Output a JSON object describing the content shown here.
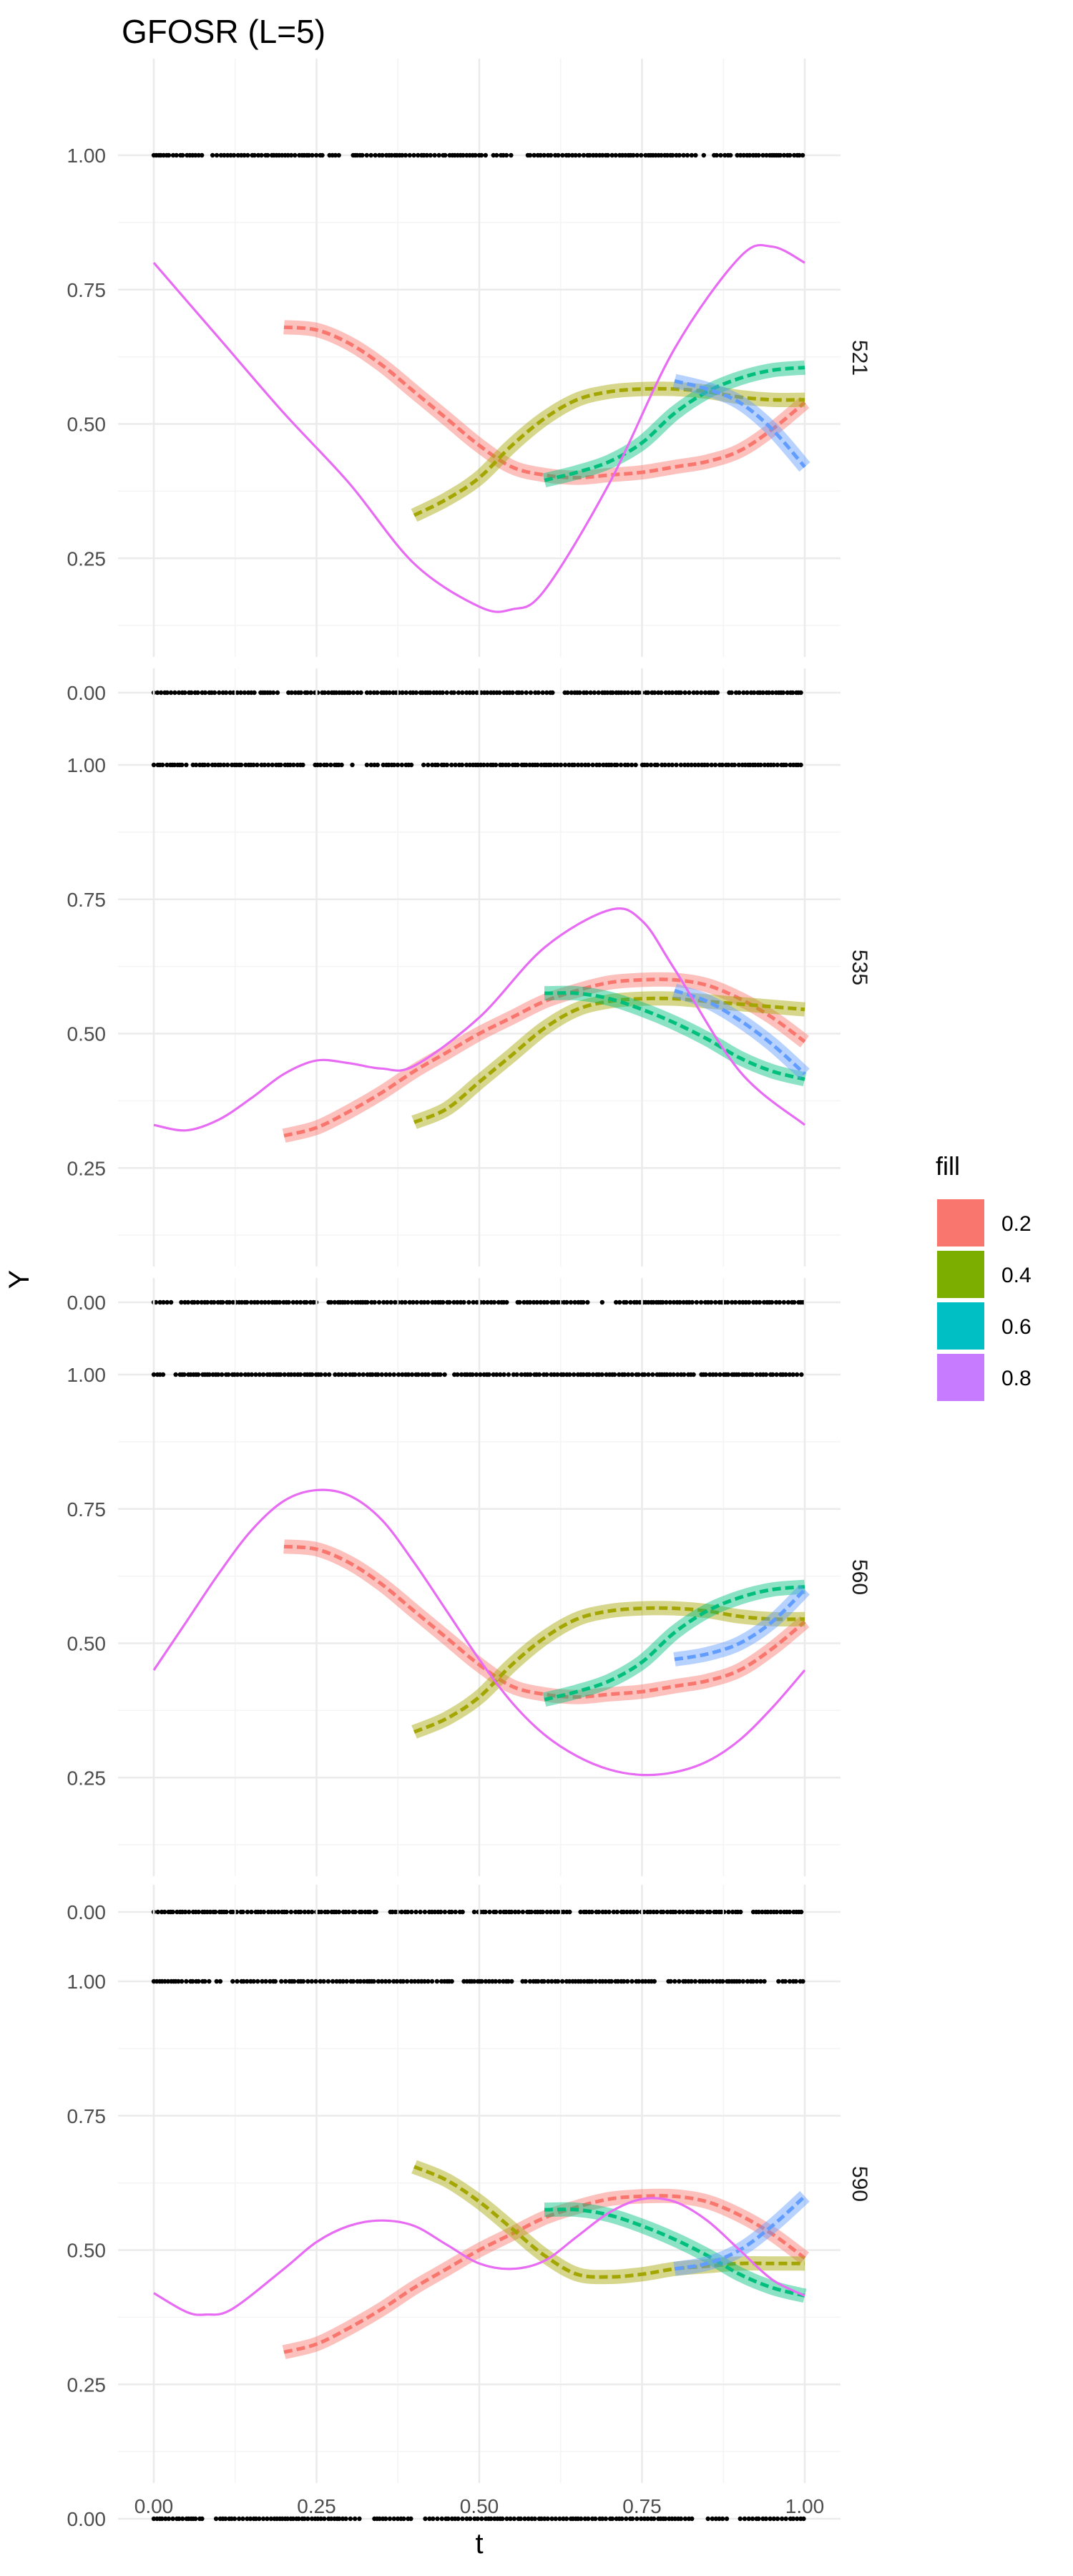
{
  "chart_data": {
    "type": "line",
    "title": "GFOSR (L=5)",
    "xlabel": "t",
    "ylabel": "Y",
    "xlim": [
      0,
      1
    ],
    "ylim": [
      0,
      1
    ],
    "x_ticks": [
      "0.00",
      "0.25",
      "0.50",
      "0.75",
      "1.00"
    ],
    "y_ticks": [
      "0.00",
      "0.25",
      "0.50",
      "0.75",
      "1.00"
    ],
    "grid": true,
    "legend": {
      "title": "fill",
      "position": "right",
      "entries": [
        {
          "label": "0.2",
          "color": "#F8766D"
        },
        {
          "label": "0.4",
          "color": "#7CAE00"
        },
        {
          "label": "0.6",
          "color": "#00BFC4"
        },
        {
          "label": "0.8",
          "color": "#C77CFF"
        }
      ]
    },
    "series_colors": {
      "0.2": "#F8766D",
      "0.4": "#A3A500",
      "0.6": "#00BF7D",
      "0.8": "#619CFF",
      "truth": "#E76BF3",
      "points": "#000000"
    },
    "panels": [
      {
        "strip": "521",
        "truth": {
          "x": [
            0,
            0.1,
            0.2,
            0.3,
            0.4,
            0.5,
            0.55,
            0.6,
            0.7,
            0.8,
            0.9,
            0.95,
            1.0
          ],
          "y": [
            0.8,
            0.66,
            0.52,
            0.39,
            0.24,
            0.16,
            0.155,
            0.19,
            0.39,
            0.64,
            0.81,
            0.83,
            0.8
          ]
        },
        "series": [
          {
            "name": "0.2",
            "x": [
              0.2,
              0.25,
              0.3,
              0.35,
              0.4,
              0.45,
              0.5,
              0.55,
              0.6,
              0.65,
              0.7,
              0.75,
              0.8,
              0.85,
              0.9,
              0.95,
              1.0
            ],
            "y": [
              0.68,
              0.675,
              0.65,
              0.61,
              0.56,
              0.51,
              0.46,
              0.42,
              0.405,
              0.4,
              0.405,
              0.41,
              0.42,
              0.43,
              0.45,
              0.49,
              0.54
            ]
          },
          {
            "name": "0.4",
            "x": [
              0.4,
              0.45,
              0.5,
              0.55,
              0.6,
              0.65,
              0.7,
              0.75,
              0.8,
              0.85,
              0.9,
              0.95,
              1.0
            ],
            "y": [
              0.33,
              0.36,
              0.4,
              0.46,
              0.51,
              0.545,
              0.56,
              0.565,
              0.565,
              0.56,
              0.55,
              0.545,
              0.545
            ]
          },
          {
            "name": "0.6",
            "x": [
              0.6,
              0.65,
              0.7,
              0.75,
              0.8,
              0.85,
              0.9,
              0.95,
              1.0
            ],
            "y": [
              0.395,
              0.41,
              0.43,
              0.465,
              0.52,
              0.56,
              0.585,
              0.6,
              0.605
            ]
          },
          {
            "name": "0.8",
            "x": [
              0.8,
              0.85,
              0.9,
              0.95,
              1.0
            ],
            "y": [
              0.58,
              0.565,
              0.54,
              0.49,
              0.42
            ]
          }
        ]
      },
      {
        "strip": "535",
        "truth": {
          "x": [
            0,
            0.05,
            0.1,
            0.15,
            0.2,
            0.25,
            0.3,
            0.35,
            0.4,
            0.5,
            0.6,
            0.7,
            0.75,
            0.8,
            0.9,
            1.0
          ],
          "y": [
            0.33,
            0.32,
            0.34,
            0.38,
            0.425,
            0.45,
            0.445,
            0.435,
            0.44,
            0.53,
            0.66,
            0.73,
            0.71,
            0.62,
            0.43,
            0.33
          ]
        },
        "series": [
          {
            "name": "0.2",
            "x": [
              0.2,
              0.25,
              0.3,
              0.35,
              0.4,
              0.45,
              0.5,
              0.55,
              0.6,
              0.65,
              0.7,
              0.75,
              0.8,
              0.85,
              0.9,
              0.95,
              1.0
            ],
            "y": [
              0.31,
              0.325,
              0.355,
              0.39,
              0.43,
              0.465,
              0.5,
              0.53,
              0.56,
              0.58,
              0.595,
              0.6,
              0.6,
              0.59,
              0.565,
              0.53,
              0.485
            ]
          },
          {
            "name": "0.4",
            "x": [
              0.4,
              0.45,
              0.5,
              0.55,
              0.6,
              0.65,
              0.7,
              0.75,
              0.8,
              0.85,
              0.9,
              0.95,
              1.0
            ],
            "y": [
              0.335,
              0.36,
              0.41,
              0.46,
              0.51,
              0.545,
              0.56,
              0.565,
              0.565,
              0.56,
              0.555,
              0.55,
              0.545
            ]
          },
          {
            "name": "0.6",
            "x": [
              0.6,
              0.65,
              0.7,
              0.75,
              0.8,
              0.85,
              0.9,
              0.95,
              1.0
            ],
            "y": [
              0.575,
              0.575,
              0.565,
              0.545,
              0.52,
              0.49,
              0.455,
              0.43,
              0.415
            ]
          },
          {
            "name": "0.8",
            "x": [
              0.8,
              0.85,
              0.9,
              0.95,
              1.0
            ],
            "y": [
              0.58,
              0.56,
              0.525,
              0.48,
              0.425
            ]
          }
        ]
      },
      {
        "strip": "560",
        "truth": {
          "x": [
            0,
            0.05,
            0.1,
            0.15,
            0.2,
            0.25,
            0.3,
            0.35,
            0.4,
            0.45,
            0.5,
            0.55,
            0.6,
            0.65,
            0.7,
            0.75,
            0.8,
            0.85,
            0.9,
            0.95,
            1.0
          ],
          "y": [
            0.45,
            0.54,
            0.63,
            0.71,
            0.765,
            0.785,
            0.775,
            0.73,
            0.65,
            0.56,
            0.47,
            0.39,
            0.33,
            0.29,
            0.265,
            0.255,
            0.26,
            0.28,
            0.32,
            0.38,
            0.45
          ]
        },
        "series": [
          {
            "name": "0.2",
            "x": [
              0.2,
              0.25,
              0.3,
              0.35,
              0.4,
              0.45,
              0.5,
              0.55,
              0.6,
              0.65,
              0.7,
              0.75,
              0.8,
              0.85,
              0.9,
              0.95,
              1.0
            ],
            "y": [
              0.68,
              0.675,
              0.65,
              0.61,
              0.56,
              0.51,
              0.46,
              0.42,
              0.405,
              0.4,
              0.405,
              0.41,
              0.42,
              0.43,
              0.45,
              0.49,
              0.54
            ]
          },
          {
            "name": "0.4",
            "x": [
              0.4,
              0.45,
              0.5,
              0.55,
              0.6,
              0.65,
              0.7,
              0.75,
              0.8,
              0.85,
              0.9,
              0.95,
              1.0
            ],
            "y": [
              0.335,
              0.36,
              0.4,
              0.46,
              0.51,
              0.545,
              0.56,
              0.565,
              0.565,
              0.56,
              0.55,
              0.545,
              0.545
            ]
          },
          {
            "name": "0.6",
            "x": [
              0.6,
              0.65,
              0.7,
              0.75,
              0.8,
              0.85,
              0.9,
              0.95,
              1.0
            ],
            "y": [
              0.395,
              0.41,
              0.43,
              0.465,
              0.52,
              0.56,
              0.585,
              0.6,
              0.605
            ]
          },
          {
            "name": "0.8",
            "x": [
              0.8,
              0.85,
              0.9,
              0.95,
              1.0
            ],
            "y": [
              0.47,
              0.48,
              0.5,
              0.54,
              0.6
            ]
          }
        ]
      },
      {
        "strip": "590",
        "truth": {
          "x": [
            0,
            0.05,
            0.08,
            0.12,
            0.2,
            0.25,
            0.3,
            0.35,
            0.4,
            0.45,
            0.5,
            0.55,
            0.6,
            0.65,
            0.7,
            0.75,
            0.8,
            0.85,
            0.9,
            0.95,
            1.0
          ],
          "y": [
            0.42,
            0.385,
            0.38,
            0.39,
            0.465,
            0.515,
            0.545,
            0.555,
            0.545,
            0.51,
            0.475,
            0.465,
            0.48,
            0.525,
            0.57,
            0.595,
            0.59,
            0.555,
            0.5,
            0.445,
            0.415
          ]
        },
        "series": [
          {
            "name": "0.2",
            "x": [
              0.2,
              0.25,
              0.3,
              0.35,
              0.4,
              0.45,
              0.5,
              0.55,
              0.6,
              0.65,
              0.7,
              0.75,
              0.8,
              0.85,
              0.9,
              0.95,
              1.0
            ],
            "y": [
              0.31,
              0.325,
              0.355,
              0.39,
              0.43,
              0.465,
              0.5,
              0.53,
              0.56,
              0.58,
              0.595,
              0.6,
              0.6,
              0.59,
              0.565,
              0.53,
              0.485
            ]
          },
          {
            "name": "0.4",
            "x": [
              0.4,
              0.45,
              0.5,
              0.55,
              0.6,
              0.65,
              0.7,
              0.75,
              0.8,
              0.85,
              0.9,
              0.95,
              1.0
            ],
            "y": [
              0.655,
              0.63,
              0.59,
              0.54,
              0.49,
              0.455,
              0.45,
              0.455,
              0.465,
              0.47,
              0.475,
              0.475,
              0.475
            ]
          },
          {
            "name": "0.6",
            "x": [
              0.6,
              0.65,
              0.7,
              0.75,
              0.8,
              0.85,
              0.9,
              0.95,
              1.0
            ],
            "y": [
              0.575,
              0.575,
              0.565,
              0.545,
              0.52,
              0.49,
              0.455,
              0.43,
              0.415
            ]
          },
          {
            "name": "0.8",
            "x": [
              0.8,
              0.85,
              0.9,
              0.95,
              1.0
            ],
            "y": [
              0.465,
              0.475,
              0.5,
              0.545,
              0.6
            ]
          }
        ]
      }
    ]
  }
}
